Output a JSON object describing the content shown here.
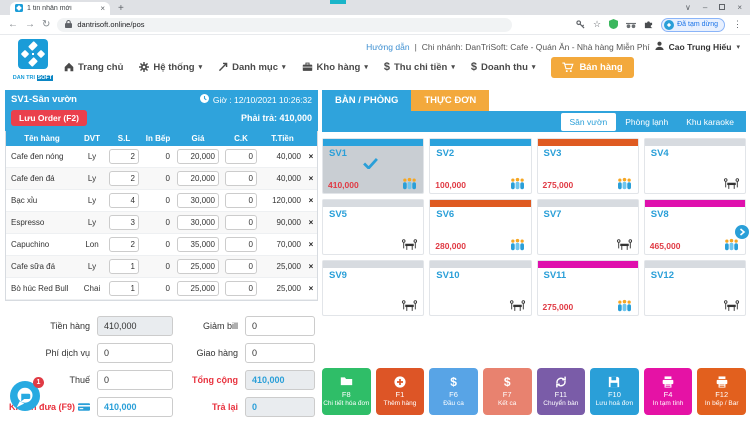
{
  "browser": {
    "tab_title": "1 tin nhắn mới",
    "url": "dantrisoft.online/pos",
    "profile_label": "Đã tạm dừng"
  },
  "header": {
    "guide": "Hướng dẫn",
    "separator": "|",
    "branch": "Chi nhánh: DanTriSoft: Cafe - Quán Ăn - Nhà hàng Miễn Phí",
    "user": "Cao Trung Hiếu",
    "logo_line1": "DAN TRI",
    "logo_line2": "SOFT"
  },
  "nav": {
    "items": [
      {
        "label": "Trang chủ",
        "icon": "home-icon",
        "caret": false
      },
      {
        "label": "Hệ thống",
        "icon": "gear-icon",
        "caret": true
      },
      {
        "label": "Danh mục",
        "icon": "share-arrow-icon",
        "caret": true
      },
      {
        "label": "Kho hàng",
        "icon": "box-icon",
        "caret": true
      },
      {
        "label": "Thu chi tiền",
        "icon": "dollar-icon",
        "caret": true
      },
      {
        "label": "Doanh thu",
        "icon": "dollar-icon",
        "caret": true
      }
    ],
    "sell_label": "Bán hàng"
  },
  "order_panel": {
    "title": "SV1-Sân vườn",
    "time": "Giờ : 12/10/2021 10:26:32",
    "save_label": "Lưu Order (F2)",
    "due_label": "Phải trả: 410,000",
    "columns": [
      "Tên hàng",
      "DVT",
      "S.L",
      "In Bếp",
      "Giá",
      "C.K",
      "T.Tiền",
      ""
    ],
    "rows": [
      {
        "name": "Cafe đen nóng",
        "unit": "Ly",
        "qty": "2",
        "kitchen": "0",
        "price": "20,000",
        "discount": "0",
        "total": "40,000"
      },
      {
        "name": "Cafe đen đá",
        "unit": "Ly",
        "qty": "2",
        "kitchen": "0",
        "price": "20,000",
        "discount": "0",
        "total": "40,000"
      },
      {
        "name": "Bạc xỉu",
        "unit": "Ly",
        "qty": "4",
        "kitchen": "0",
        "price": "30,000",
        "discount": "0",
        "total": "120,000"
      },
      {
        "name": "Espresso",
        "unit": "Ly",
        "qty": "3",
        "kitchen": "0",
        "price": "30,000",
        "discount": "0",
        "total": "90,000"
      },
      {
        "name": "Capuchino",
        "unit": "Lon",
        "qty": "2",
        "kitchen": "0",
        "price": "35,000",
        "discount": "0",
        "total": "70,000"
      },
      {
        "name": "Cafe sữa đá",
        "unit": "Ly",
        "qty": "1",
        "kitchen": "0",
        "price": "25,000",
        "discount": "0",
        "total": "25,000"
      },
      {
        "name": "Bò húc Red Bull",
        "unit": "Chai",
        "qty": "1",
        "kitchen": "0",
        "price": "25,000",
        "discount": "0",
        "total": "25,000"
      }
    ]
  },
  "summary": {
    "rows": [
      {
        "left": {
          "label": "Tiền hàng",
          "value": "410,000",
          "field": "disabled",
          "label_red": false
        },
        "right": {
          "label": "Giảm bill",
          "value": "0",
          "field": "normal",
          "label_red": false
        }
      },
      {
        "left": {
          "label": "Phí dịch vụ",
          "value": "0",
          "field": "normal",
          "label_red": false
        },
        "right": {
          "label": "Giao hàng",
          "value": "0",
          "field": "normal",
          "label_red": false
        }
      },
      {
        "left": {
          "label": "Thuế",
          "value": "0",
          "field": "normal",
          "label_red": false
        },
        "right": {
          "label": "Tổng cộng",
          "value": "410,000",
          "field": "disabled-blue",
          "label_red": true
        }
      },
      {
        "left": {
          "label": "Khách đưa (F9)",
          "value": "410,000",
          "field": "blue",
          "label_red": true,
          "icon": "card-icon"
        },
        "right": {
          "label": "Trả lại",
          "value": "0",
          "field": "disabled-blue",
          "label_red": true
        }
      }
    ]
  },
  "tables_panel": {
    "tab_tables": "BÀN / PHÒNG",
    "tab_menu": "THỰC ĐƠN",
    "zones": [
      {
        "label": "Sân vườn",
        "active": true
      },
      {
        "label": "Phòng lạnh",
        "active": false
      },
      {
        "label": "Khu karaoke",
        "active": false
      }
    ],
    "tables": [
      {
        "name": "SV1",
        "price": "410,000",
        "status": "blue",
        "occupied": true,
        "selected": true
      },
      {
        "name": "SV2",
        "price": "100,000",
        "status": "blue",
        "occupied": true,
        "selected": false
      },
      {
        "name": "SV3",
        "price": "275,000",
        "status": "orange",
        "occupied": true,
        "selected": false
      },
      {
        "name": "SV4",
        "price": "",
        "status": "grey",
        "occupied": false,
        "selected": false
      },
      {
        "name": "SV5",
        "price": "",
        "status": "grey",
        "occupied": false,
        "selected": false
      },
      {
        "name": "SV6",
        "price": "280,000",
        "status": "orange",
        "occupied": true,
        "selected": false
      },
      {
        "name": "SV7",
        "price": "",
        "status": "grey",
        "occupied": false,
        "selected": false
      },
      {
        "name": "SV8",
        "price": "465,000",
        "status": "magenta",
        "occupied": true,
        "selected": false
      },
      {
        "name": "SV9",
        "price": "",
        "status": "grey",
        "occupied": false,
        "selected": false
      },
      {
        "name": "SV10",
        "price": "",
        "status": "grey",
        "occupied": false,
        "selected": false
      },
      {
        "name": "SV11",
        "price": "275,000",
        "status": "magenta",
        "occupied": true,
        "selected": false
      },
      {
        "name": "SV12",
        "price": "",
        "status": "grey",
        "occupied": false,
        "selected": false
      }
    ]
  },
  "action_buttons": [
    {
      "key": "F8",
      "label": "Chi tiết hóa đơn",
      "color": "#2fbe68",
      "icon": "folder-icon"
    },
    {
      "key": "F1",
      "label": "Thêm hàng",
      "color": "#dd5526",
      "icon": "plus-circle-icon"
    },
    {
      "key": "F6",
      "label": "Đầu ca",
      "color": "#58a4e6",
      "icon": "dollar-icon"
    },
    {
      "key": "F7",
      "label": "Kết ca",
      "color": "#e8826f",
      "icon": "dollar-icon"
    },
    {
      "key": "F11",
      "label": "Chuyển bàn",
      "color": "#7a5ca8",
      "icon": "swap-icon"
    },
    {
      "key": "F10",
      "label": "Lưu hoá đơn",
      "color": "#2a9fd8",
      "icon": "save-icon"
    },
    {
      "key": "F4",
      "label": "In tạm tính",
      "color": "#e512a5",
      "icon": "printer-icon"
    },
    {
      "key": "F12",
      "label": "In bếp / Bar",
      "color": "#e2601e",
      "icon": "printer-icon"
    }
  ],
  "chat": {
    "badge": "1"
  },
  "colors": {
    "accent_blue": "#2fa3dc",
    "accent_orange": "#f3a93c",
    "price_red": "#e03a44",
    "status": {
      "blue": "#2aa2dc",
      "orange": "#df5a21",
      "magenta": "#df10ad",
      "grey": "#d7dbe0"
    }
  }
}
